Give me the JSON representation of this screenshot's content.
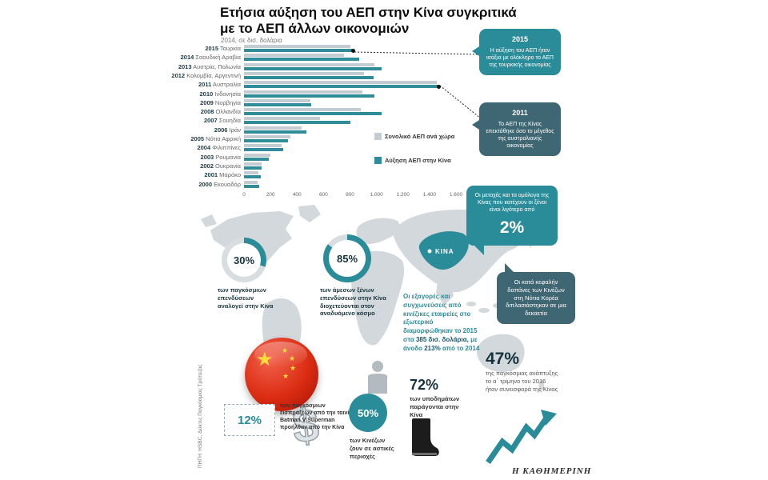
{
  "title": {
    "line1": "Ετήσια αύξηση του ΑΕΠ στην Κίνα συγκριτικά",
    "line2": "με το ΑΕΠ άλλων οικονομιών",
    "subtitle": "2014, σε δισ. δολάρια"
  },
  "chart_data": {
    "type": "bar",
    "orientation": "horizontal",
    "title": "Ετήσια αύξηση του ΑΕΠ στην Κίνα συγκριτικά με το ΑΕΠ άλλων οικονομιών",
    "unit_note": "2014, σε δισ. δολάρια",
    "categories": [
      "2015",
      "2014",
      "2013",
      "2012",
      "2011",
      "2010",
      "2009",
      "2008",
      "2007",
      "2006",
      "2005",
      "2004",
      "2003",
      "2002",
      "2001",
      "2000"
    ],
    "country_labels": [
      "Τουρκία",
      "Σαουδική Αραβία",
      "Αυστρία, Πολωνία",
      "Κολομβία, Αργεντινή",
      "Αυστραλία",
      "Ινδονησία",
      "Νορβηγία",
      "Ολλανδία",
      "Σουηδία",
      "Ιράν",
      "Νότια Αφρική",
      "Φιλιππίνες",
      "Ρουμανία",
      "Ουκρανία",
      "Μαρόκο",
      "Εκουαδόρ"
    ],
    "series": [
      {
        "name": "Συνολικό ΑΕΠ ανά χώρα",
        "color": "#c3ccd3",
        "values": [
          800,
          756,
          987,
          904,
          1454,
          891,
          499,
          879,
          574,
          434,
          351,
          285,
          200,
          132,
          110,
          102
        ]
      },
      {
        "name": "Αύξηση ΑΕΠ στην Κίνα",
        "color": "#2e8d99",
        "values": [
          820,
          870,
          1040,
          980,
          1465,
          985,
          510,
          1040,
          800,
          470,
          330,
          295,
          190,
          130,
          128,
          117
        ]
      }
    ],
    "x_ticks": [
      "0",
      "200",
      "400",
      "600",
      "800",
      "1.000",
      "1.200",
      "1.400",
      "1.600"
    ],
    "xlim": [
      0,
      1600
    ],
    "dot_years": [
      "2015",
      "2011"
    ],
    "legend_position": "inside-right",
    "grid": false
  },
  "callouts": {
    "c2015": {
      "year": "2015",
      "text": "Η αύξηση του ΑΕΠ ήταν ισάξια με ολόκληρο το ΑΕΠ της τουρκικής οικονομίας"
    },
    "c2011": {
      "year": "2011",
      "text": "Το ΑΕΠ της Κίνας επεκτάθηκε όσο το μέγεθος της αυστραλιανής οικονομίας"
    }
  },
  "map": {
    "china_label": "ΚΙΝΑ"
  },
  "stats": {
    "s30": {
      "value": "30%",
      "pct": 30,
      "text": "των παγκόσμιων επενδύσεων αναλογεί στην Κίνα"
    },
    "s85": {
      "value": "85%",
      "pct": 85,
      "text": "των άμεσων ξένων επενδύσεων στην Κίνα διοχετεύονται στον αναδυόμενο κόσμο"
    },
    "s2": {
      "text": "Οι μετοχές και τα ομόλογα της Κίνας που κατέχουν οι ξένοι είναι λιγότερο από",
      "value": "2%"
    },
    "korea": {
      "text": "Οι κατά κεφαλήν δαπάνες των Κινέζων στη Νότια Κορέα διπλασιάστηκαν σε μια δεκαετία"
    },
    "ma": {
      "p1": "Οι εξαγορές και συγχωνεύσεις από κινέζικες εταιρείες στο εξωτερικό διαμορφώθηκαν το 2015 στα",
      "v1": "385 δισ. δολάρια,",
      "p2": "με άνοδο",
      "v2": "213%",
      "p3": "από το 2014"
    },
    "s47": {
      "value": "47%",
      "text": "της παγκόσμιας ανάπτυξης το α΄ τρίμηνο του 2016 ήταν συνεισφορά της Κίνας"
    },
    "s12": {
      "value": "12%",
      "text": "των παγκόσμιων εισπράξεων από την ταινία Batman V Superman προήλθαν από την Κίνα"
    },
    "s50": {
      "value": "50%",
      "text": "των Κινέζων ζουν σε αστικές περιοχές"
    },
    "s72": {
      "value": "72%",
      "text": "των υποδημάτων παράγονται στην Κίνα"
    }
  },
  "footer": {
    "source": "ΠΗΓΗ: HSBC, Δείκτες Παγκόσμιας Τράπεζας",
    "brand": "Η ΚΑΘΗΜΕΡΙΝΗ"
  },
  "colors": {
    "teal": "#2b8c99",
    "slate": "#3f6673",
    "bar_gray": "#c3ccd3",
    "flag_red": "#da2c12",
    "star_yellow": "#ffde38"
  }
}
